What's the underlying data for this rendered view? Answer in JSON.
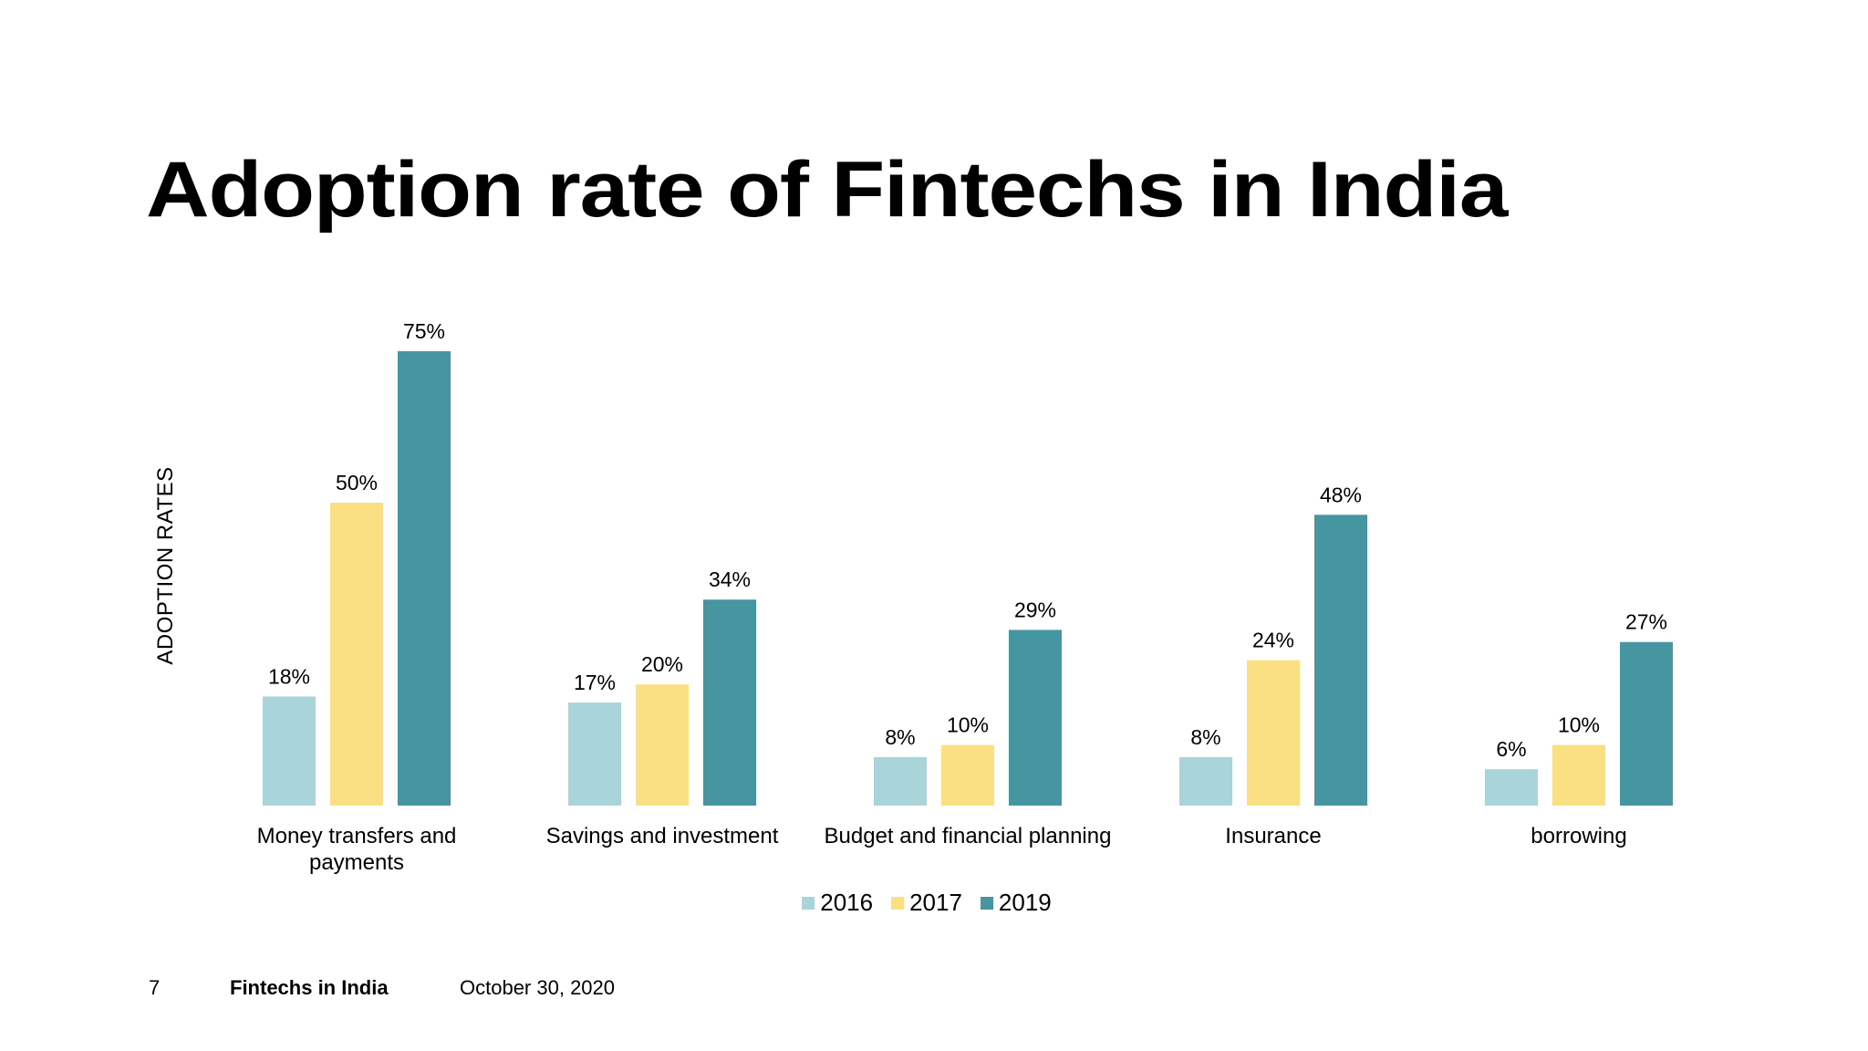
{
  "slide": {
    "title": "Adoption rate of Fintechs in India"
  },
  "footer": {
    "page_number": "7",
    "deck_title": "Fintechs in India",
    "date": "October 30, 2020"
  },
  "colors": {
    "2016": "#a8d4da",
    "2017": "#fbe083",
    "2019": "#4596a0"
  },
  "chart_data": {
    "type": "bar",
    "title": "Adoption rate of Fintechs in India",
    "xlabel": "",
    "ylabel": "ADOPTION RATES",
    "ylim": [
      0,
      80
    ],
    "grid": false,
    "legend_position": "bottom",
    "categories": [
      [
        "Money transfers and",
        "payments"
      ],
      [
        "Savings and investment"
      ],
      [
        "Budget and financial planning"
      ],
      [
        "Insurance"
      ],
      [
        "borrowing"
      ]
    ],
    "series": [
      {
        "name": "2016",
        "values": [
          18,
          17,
          8,
          8,
          6
        ],
        "labels": [
          "18%",
          "17%",
          "8%",
          "8%",
          "6%"
        ]
      },
      {
        "name": "2017",
        "values": [
          50,
          20,
          10,
          24,
          10
        ],
        "labels": [
          "50%",
          "20%",
          "10%",
          "24%",
          "10%"
        ]
      },
      {
        "name": "2019",
        "values": [
          75,
          34,
          29,
          48,
          27
        ],
        "labels": [
          "75%",
          "34%",
          "29%",
          "48%",
          "27%"
        ]
      }
    ]
  }
}
